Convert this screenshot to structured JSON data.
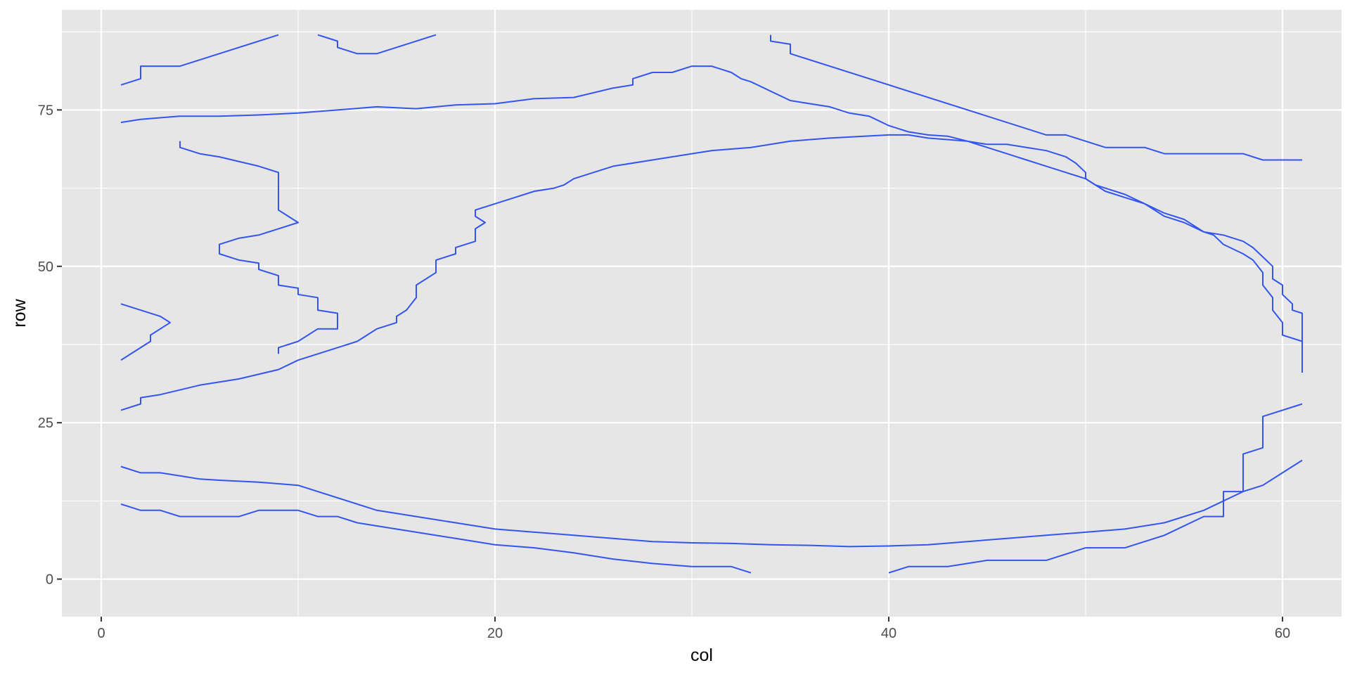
{
  "chart_data": {
    "type": "line",
    "subtype": "contour",
    "title": "",
    "xlabel": "col",
    "ylabel": "row",
    "xlim": [
      -2,
      63
    ],
    "ylim": [
      -6,
      91
    ],
    "xticks": [
      0,
      20,
      40,
      60
    ],
    "yticks": [
      0,
      25,
      50,
      75
    ],
    "xtick_labels": [
      "0",
      "20",
      "40",
      "60"
    ],
    "ytick_labels": [
      "0",
      "25",
      "50",
      "75"
    ],
    "grid": true,
    "legend": "none",
    "colors": {
      "panel": "#e6e6e6",
      "grid": "#ffffff",
      "line": "#3355ee",
      "tick": "#333333"
    },
    "series": [
      {
        "points": [
          [
            1,
            79
          ],
          [
            2,
            80
          ],
          [
            2,
            82
          ],
          [
            4,
            82
          ],
          [
            9,
            87
          ]
        ]
      },
      {
        "points": [
          [
            11,
            87
          ],
          [
            12,
            86
          ],
          [
            12,
            85
          ],
          [
            13,
            84
          ],
          [
            14,
            84
          ],
          [
            17,
            87
          ]
        ]
      },
      {
        "points": [
          [
            34,
            87
          ],
          [
            34,
            86
          ],
          [
            35,
            85.5
          ],
          [
            35,
            84
          ],
          [
            48,
            71
          ],
          [
            49,
            71
          ],
          [
            51,
            69
          ],
          [
            53,
            69
          ],
          [
            54,
            68
          ],
          [
            58,
            68
          ],
          [
            59,
            67
          ],
          [
            61,
            67
          ]
        ]
      },
      {
        "points": [
          [
            1,
            73
          ],
          [
            2,
            73.5
          ],
          [
            4,
            74
          ],
          [
            6,
            74
          ],
          [
            8,
            74.2
          ],
          [
            10,
            74.5
          ],
          [
            12,
            75
          ],
          [
            14,
            75.5
          ],
          [
            16,
            75.2
          ],
          [
            18,
            75.8
          ],
          [
            20,
            76
          ],
          [
            22,
            76.8
          ],
          [
            24,
            77
          ],
          [
            26,
            78.5
          ],
          [
            27,
            79
          ],
          [
            27,
            80
          ],
          [
            28,
            81
          ],
          [
            29,
            81
          ],
          [
            30,
            82
          ],
          [
            31,
            82
          ],
          [
            32,
            81
          ],
          [
            32.5,
            80
          ],
          [
            33,
            79.5
          ],
          [
            34,
            78
          ],
          [
            35,
            76.5
          ],
          [
            36,
            76
          ],
          [
            37,
            75.5
          ],
          [
            38,
            74.5
          ],
          [
            39,
            74
          ],
          [
            40,
            72.5
          ],
          [
            41,
            71.5
          ],
          [
            42,
            71
          ],
          [
            43,
            70.8
          ],
          [
            44,
            70
          ],
          [
            45,
            69.5
          ],
          [
            46,
            69.5
          ],
          [
            47,
            69
          ],
          [
            48,
            68.5
          ],
          [
            49,
            67.5
          ],
          [
            49.5,
            66.5
          ],
          [
            50,
            65
          ],
          [
            50,
            64
          ],
          [
            50.5,
            63
          ],
          [
            51,
            62.5
          ],
          [
            52,
            61.5
          ],
          [
            53,
            60
          ],
          [
            54,
            58.5
          ],
          [
            55,
            57.5
          ],
          [
            56,
            55.5
          ],
          [
            57,
            55
          ],
          [
            58,
            54
          ],
          [
            58.5,
            53
          ],
          [
            59,
            51.5
          ],
          [
            59.5,
            50
          ],
          [
            59.5,
            48
          ],
          [
            60,
            47
          ],
          [
            60,
            45.5
          ],
          [
            60.5,
            44
          ],
          [
            60.5,
            43
          ],
          [
            61,
            42.5
          ],
          [
            61,
            41
          ],
          [
            61,
            40
          ],
          [
            61,
            33
          ]
        ]
      },
      {
        "points": [
          [
            4,
            70
          ],
          [
            4,
            69
          ],
          [
            5,
            68
          ],
          [
            6,
            67.5
          ],
          [
            8,
            66
          ],
          [
            9,
            65
          ],
          [
            9,
            59
          ],
          [
            9.5,
            58
          ],
          [
            10,
            57
          ],
          [
            9,
            56
          ],
          [
            8,
            55
          ],
          [
            7,
            54.5
          ],
          [
            6,
            53.5
          ],
          [
            6,
            52
          ],
          [
            7,
            51
          ],
          [
            8,
            50.5
          ],
          [
            8,
            49.5
          ],
          [
            9,
            48.5
          ],
          [
            9,
            47
          ],
          [
            10,
            46.5
          ],
          [
            10,
            45.5
          ],
          [
            11,
            45
          ],
          [
            11,
            43
          ],
          [
            12,
            42.5
          ],
          [
            12,
            40
          ],
          [
            11,
            40
          ],
          [
            10,
            38
          ],
          [
            9,
            37
          ],
          [
            9,
            36
          ]
        ]
      },
      {
        "points": [
          [
            1,
            44
          ],
          [
            2,
            43
          ],
          [
            3,
            42
          ],
          [
            3.5,
            41
          ],
          [
            3,
            40
          ],
          [
            2.5,
            39
          ],
          [
            2.5,
            38
          ],
          [
            2,
            37
          ],
          [
            1,
            35
          ]
        ]
      },
      {
        "points": [
          [
            1,
            27
          ],
          [
            2,
            28
          ],
          [
            2,
            29
          ],
          [
            3,
            29.5
          ],
          [
            5,
            31
          ],
          [
            7,
            32
          ],
          [
            9,
            33.5
          ],
          [
            10,
            35
          ],
          [
            11,
            36
          ],
          [
            12,
            37
          ],
          [
            13,
            38
          ],
          [
            13.5,
            39
          ],
          [
            14,
            40
          ],
          [
            15,
            41
          ],
          [
            15,
            42
          ],
          [
            15.5,
            43
          ],
          [
            16,
            45
          ],
          [
            16,
            47
          ],
          [
            17,
            49
          ],
          [
            17,
            51
          ],
          [
            18,
            52
          ],
          [
            18,
            53
          ],
          [
            19,
            54
          ],
          [
            19,
            56
          ],
          [
            19.5,
            57
          ],
          [
            19,
            58
          ],
          [
            19,
            59
          ],
          [
            20,
            60
          ],
          [
            21,
            61
          ],
          [
            22,
            62
          ],
          [
            23,
            62.5
          ],
          [
            23.5,
            63
          ],
          [
            24,
            64
          ],
          [
            25,
            65
          ],
          [
            26,
            66
          ],
          [
            28,
            67
          ],
          [
            30,
            68
          ],
          [
            31,
            68.5
          ],
          [
            33,
            69
          ],
          [
            35,
            70
          ],
          [
            37,
            70.5
          ],
          [
            40,
            71
          ],
          [
            41,
            71
          ],
          [
            42,
            70.5
          ],
          [
            44,
            70
          ],
          [
            45,
            69
          ],
          [
            46,
            68
          ],
          [
            46.5,
            67.5
          ],
          [
            47,
            67
          ],
          [
            48,
            66
          ],
          [
            49,
            65
          ],
          [
            50,
            64
          ],
          [
            50.5,
            63
          ],
          [
            51,
            62
          ],
          [
            52,
            61
          ],
          [
            53,
            60
          ],
          [
            54,
            58
          ],
          [
            55,
            57
          ],
          [
            56,
            55.5
          ],
          [
            56.5,
            55
          ],
          [
            57,
            53.5
          ],
          [
            58,
            52
          ],
          [
            58.5,
            51
          ],
          [
            59,
            49
          ],
          [
            59,
            47
          ],
          [
            59.5,
            45
          ],
          [
            59.5,
            44
          ],
          [
            59.5,
            43
          ],
          [
            60,
            41
          ],
          [
            60,
            40
          ],
          [
            60,
            39
          ],
          [
            61,
            38
          ],
          [
            61,
            37
          ],
          [
            61,
            33
          ]
        ]
      },
      {
        "points": [
          [
            1,
            18
          ],
          [
            2,
            17
          ],
          [
            3,
            17
          ],
          [
            4,
            16.5
          ],
          [
            5,
            16
          ],
          [
            6,
            15.8
          ],
          [
            8,
            15.5
          ],
          [
            10,
            15
          ],
          [
            12,
            13
          ],
          [
            14,
            11
          ],
          [
            16,
            10
          ],
          [
            18,
            9
          ],
          [
            20,
            8
          ],
          [
            22,
            7.5
          ],
          [
            24,
            7
          ],
          [
            26,
            6.5
          ],
          [
            28,
            6
          ],
          [
            30,
            5.8
          ],
          [
            32,
            5.7
          ],
          [
            34,
            5.5
          ],
          [
            36,
            5.4
          ],
          [
            38,
            5.2
          ],
          [
            40,
            5.3
          ],
          [
            42,
            5.5
          ],
          [
            44,
            6
          ],
          [
            46,
            6.5
          ],
          [
            48,
            7
          ],
          [
            50,
            7.5
          ],
          [
            52,
            8
          ],
          [
            54,
            9
          ],
          [
            56,
            11
          ],
          [
            58,
            14
          ],
          [
            59,
            15
          ],
          [
            60,
            17
          ],
          [
            61,
            19
          ]
        ]
      },
      {
        "points": [
          [
            1,
            12
          ],
          [
            2,
            11
          ],
          [
            3,
            11
          ],
          [
            4,
            10
          ],
          [
            5,
            10
          ],
          [
            6,
            10
          ],
          [
            7,
            10
          ],
          [
            8,
            11
          ],
          [
            10,
            11
          ],
          [
            11,
            10
          ],
          [
            12,
            10
          ],
          [
            13,
            9
          ],
          [
            14,
            8.5
          ],
          [
            16,
            7.5
          ],
          [
            18,
            6.5
          ],
          [
            20,
            5.5
          ],
          [
            22,
            5
          ],
          [
            24,
            4.2
          ],
          [
            26,
            3.2
          ],
          [
            28,
            2.5
          ],
          [
            30,
            2
          ],
          [
            32,
            2
          ],
          [
            33,
            1
          ]
        ]
      },
      {
        "points": [
          [
            40,
            1
          ],
          [
            41,
            2
          ],
          [
            43,
            2
          ],
          [
            45,
            3
          ],
          [
            48,
            3
          ],
          [
            50,
            5
          ],
          [
            52,
            5
          ],
          [
            54,
            7
          ],
          [
            56,
            10
          ],
          [
            57,
            10
          ],
          [
            57,
            14
          ],
          [
            58,
            14
          ],
          [
            58,
            20
          ],
          [
            59,
            21
          ],
          [
            59,
            26
          ],
          [
            61,
            28
          ]
        ]
      }
    ]
  }
}
